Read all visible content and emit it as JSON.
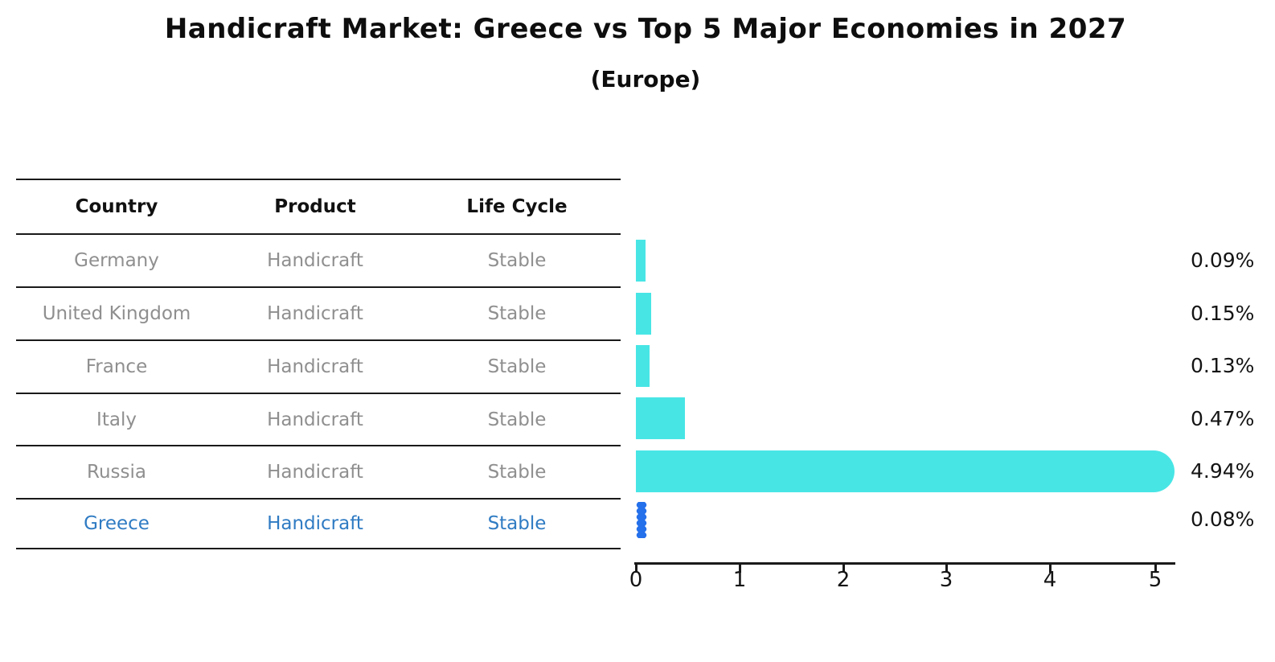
{
  "title": "Handicraft Market: Greece vs Top 5 Major Economies in 2027",
  "subtitle": "(Europe)",
  "table": {
    "headers": [
      "Country",
      "Product",
      "Life Cycle"
    ],
    "rows": [
      {
        "country": "Germany",
        "product": "Handicraft",
        "life_cycle": "Stable",
        "highlight": false
      },
      {
        "country": "United Kingdom",
        "product": "Handicraft",
        "life_cycle": "Stable",
        "highlight": false
      },
      {
        "country": "France",
        "product": "Handicraft",
        "life_cycle": "Stable",
        "highlight": false
      },
      {
        "country": "Italy",
        "product": "Handicraft",
        "life_cycle": "Stable",
        "highlight": false
      },
      {
        "country": "Russia",
        "product": "Handicraft",
        "life_cycle": "Stable",
        "highlight": false
      },
      {
        "country": "Greece",
        "product": "Handicraft",
        "life_cycle": "Stable",
        "highlight": true
      }
    ]
  },
  "chart_data": {
    "type": "bar",
    "orientation": "horizontal",
    "title": "Handicraft Market: Greece vs Top 5 Major Economies in 2027",
    "subtitle": "(Europe)",
    "categories": [
      "Germany",
      "United Kingdom",
      "France",
      "Italy",
      "Russia",
      "Greece"
    ],
    "values": [
      0.09,
      0.15,
      0.13,
      0.47,
      4.94,
      0.08
    ],
    "value_labels": [
      "0.09%",
      "0.15%",
      "0.13%",
      "0.47%",
      "4.94%",
      "0.08%"
    ],
    "xlabel": "",
    "ylabel": "",
    "xlim": [
      0,
      5.2
    ],
    "xticks": [
      "0",
      "1",
      "2",
      "3",
      "4",
      "5"
    ],
    "grid": false,
    "legend": "none",
    "bar_color": "#48E5E5",
    "highlight_index": 5,
    "highlight_color": "#2570EB"
  },
  "colors": {
    "bar": "#48E5E5",
    "highlight_bar": "#2570EB",
    "table_text": "#8f8f8f",
    "highlight_text": "#2f7bc3",
    "heading_text": "#111111",
    "axis": "#1a1a1a"
  }
}
